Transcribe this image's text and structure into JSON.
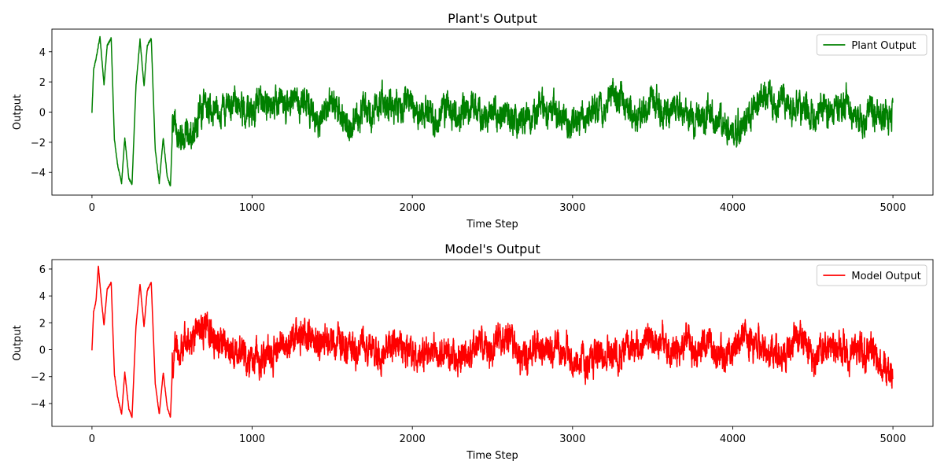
{
  "chart_data": [
    {
      "type": "line",
      "title": "Plant's Output",
      "xlabel": "Time Step",
      "ylabel": "Output",
      "xlim": [
        -250,
        5250
      ],
      "ylim": [
        -5.5,
        5.5
      ],
      "xticks": [
        0,
        1000,
        2000,
        3000,
        4000,
        5000
      ],
      "yticks": [
        -4,
        -2,
        0,
        2,
        4
      ],
      "legend_position": "top-right",
      "grid": false,
      "series": [
        {
          "name": "Plant Output",
          "color": "#008000",
          "n_points": 5000,
          "keypoints": {
            "x": [
              0,
              10,
              25,
              50,
              75,
              95,
              120,
              140,
              160,
              185,
              205,
              230,
              250,
              275,
              300,
              325,
              345,
              370,
              395,
              420,
              445,
              470,
              490,
              500
            ],
            "y": [
              0,
              2.8,
              3.5,
              5.0,
              1.8,
              4.4,
              4.9,
              -1.8,
              -3.5,
              -4.7,
              -1.7,
              -4.4,
              -4.8,
              1.8,
              4.8,
              1.7,
              4.4,
              4.9,
              -2.5,
              -4.7,
              -1.7,
              -4.3,
              -4.9,
              -2.0
            ]
          },
          "noise_amplitude": 0.9,
          "drift_amplitude": 1.0,
          "mean": 0.0
        }
      ]
    },
    {
      "type": "line",
      "title": "Model's Output",
      "xlabel": "Time Step",
      "ylabel": "Output",
      "xlim": [
        -250,
        5250
      ],
      "ylim": [
        -5.7,
        6.7
      ],
      "xticks": [
        0,
        1000,
        2000,
        3000,
        4000,
        5000
      ],
      "yticks": [
        -4,
        -2,
        0,
        2,
        4,
        6
      ],
      "legend_position": "top-right",
      "grid": false,
      "series": [
        {
          "name": "Model Output",
          "color": "#ff0000",
          "n_points": 5000,
          "keypoints": {
            "x": [
              0,
              10,
              25,
              40,
              50,
              75,
              95,
              120,
              140,
              160,
              185,
              205,
              230,
              250,
              275,
              300,
              325,
              345,
              370,
              395,
              420,
              445,
              470,
              490,
              500
            ],
            "y": [
              0,
              2.8,
              3.6,
              6.2,
              4.8,
              1.8,
              4.5,
              5.0,
              -1.8,
              -3.5,
              -4.8,
              -1.7,
              -4.4,
              -5.0,
              1.8,
              4.9,
              1.7,
              4.4,
              5.0,
              -2.5,
              -4.8,
              -1.7,
              -4.3,
              -5.0,
              -2.0
            ]
          },
          "noise_amplitude": 1.05,
          "drift_amplitude": 1.0,
          "mean": 0.0
        }
      ]
    }
  ]
}
